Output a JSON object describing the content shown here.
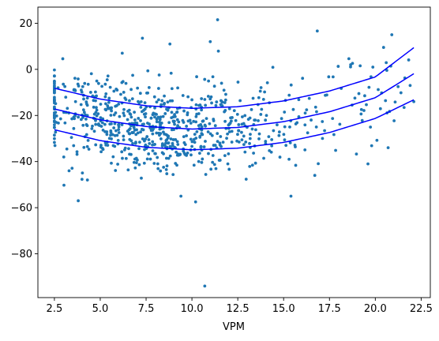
{
  "chart_data": {
    "type": "scatter",
    "title": "",
    "xlabel": "VPM",
    "ylabel": "",
    "xlim": [
      1.6,
      23.0
    ],
    "ylim": [
      -99,
      27
    ],
    "xticks": [
      2.5,
      5.0,
      7.5,
      10.0,
      12.5,
      15.0,
      17.5,
      20.0,
      22.5
    ],
    "xtick_labels": [
      "2.5",
      "5.0",
      "7.5",
      "10.0",
      "12.5",
      "15.0",
      "17.5",
      "20.0",
      "22.5"
    ],
    "yticks": [
      -80,
      -60,
      -40,
      -20,
      0,
      20
    ],
    "ytick_labels": [
      "−80",
      "−60",
      "−40",
      "−20",
      "0",
      "20"
    ],
    "grid": false,
    "legend": "none",
    "colors": {
      "points": "#1f77b4",
      "curves": "#0000ff"
    },
    "scatter": {
      "n_points": 800,
      "x_range": [
        2.5,
        22.1
      ],
      "points": [
        {
          "x": 10.7,
          "y": -94
        },
        {
          "x": 11.4,
          "y": 21.5
        },
        {
          "x": 11.0,
          "y": 12
        },
        {
          "x": 20.9,
          "y": 15
        },
        {
          "x": 7.3,
          "y": 13.5
        },
        {
          "x": 8.8,
          "y": 11
        },
        {
          "x": 3.8,
          "y": -57
        },
        {
          "x": 10.2,
          "y": -57.5
        },
        {
          "x": 15.4,
          "y": -55
        },
        {
          "x": 9.4,
          "y": -55
        },
        {
          "x": 4.3,
          "y": -48
        },
        {
          "x": 19.6,
          "y": -41
        },
        {
          "x": 16.7,
          "y": -46
        },
        {
          "x": 20.7,
          "y": -34
        },
        {
          "x": 22.1,
          "y": -14
        },
        {
          "x": 21.9,
          "y": -7
        },
        {
          "x": 2.6,
          "y": -23
        },
        {
          "x": 2.7,
          "y": -8
        },
        {
          "x": 3.3,
          "y": -44
        },
        {
          "x": 6.2,
          "y": 7
        }
      ]
    },
    "series": [
      {
        "x": [
          2.5,
          5.0,
          7.5,
          10.0,
          12.5,
          15.0,
          17.5,
          20.0,
          22.1
        ],
        "y": [
          -8.2,
          -12.9,
          -15.8,
          -16.9,
          -16.2,
          -13.7,
          -9.4,
          -3.3,
          9.4
        ]
      },
      {
        "x": [
          2.5,
          5.0,
          7.5,
          10.0,
          12.5,
          15.0,
          17.5,
          20.0,
          22.1
        ],
        "y": [
          -17.2,
          -21.9,
          -24.8,
          -25.9,
          -25.2,
          -22.7,
          -18.4,
          -12.3,
          -1.9
        ]
      },
      {
        "x": [
          2.5,
          5.0,
          7.5,
          10.0,
          12.5,
          15.0,
          17.5,
          20.0,
          22.1
        ],
        "y": [
          -26.2,
          -30.9,
          -33.8,
          -34.9,
          -34.2,
          -31.7,
          -27.4,
          -21.3,
          -13.2
        ]
      }
    ]
  }
}
